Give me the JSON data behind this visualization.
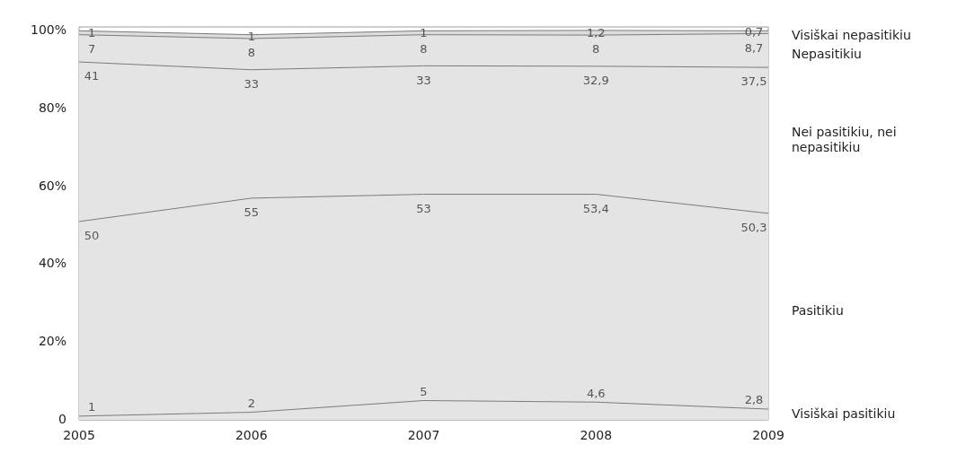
{
  "chart_data": {
    "type": "area",
    "stacked": true,
    "categories": [
      "2005",
      "2006",
      "2007",
      "2008",
      "2009"
    ],
    "ylim": [
      0,
      101
    ],
    "yticks": [
      {
        "value": 0,
        "label": "0"
      },
      {
        "value": 20,
        "label": "20%"
      },
      {
        "value": 40,
        "label": "40%"
      },
      {
        "value": 60,
        "label": "60%"
      },
      {
        "value": 80,
        "label": "80%"
      },
      {
        "value": 100,
        "label": "100%"
      }
    ],
    "grid": false,
    "legend": false,
    "series": [
      {
        "name": "Visiškai pasitikiu",
        "color": "#e4e4e4",
        "values": [
          1,
          2,
          5,
          4.6,
          2.8
        ],
        "value_labels": [
          "1",
          "2",
          "5",
          "4,6",
          "2,8"
        ]
      },
      {
        "name": "Pasitikiu",
        "color": "#e4e4e4",
        "values": [
          50,
          55,
          53,
          53.4,
          50.3
        ],
        "value_labels": [
          "50",
          "55",
          "53",
          "53,4",
          "50,3"
        ]
      },
      {
        "name": "Nei pasitikiu, nei nepasitikiu",
        "color": "#e4e4e4",
        "values": [
          41,
          33,
          33,
          32.9,
          37.5
        ],
        "value_labels": [
          "41",
          "33",
          "33",
          "32,9",
          "37,5"
        ]
      },
      {
        "name": "Nepasitikiu",
        "color": "#e4e4e4",
        "values": [
          7,
          8,
          8,
          8,
          8.7
        ],
        "value_labels": [
          "7",
          "8",
          "8",
          "8",
          "8,7"
        ]
      },
      {
        "name": "Visiškai nepasitikiu",
        "color": "#dcdcdc",
        "values": [
          1,
          1,
          1,
          1.2,
          0.7
        ],
        "value_labels": [
          "1",
          "1",
          "1",
          "1,2",
          "0,7"
        ]
      }
    ]
  }
}
